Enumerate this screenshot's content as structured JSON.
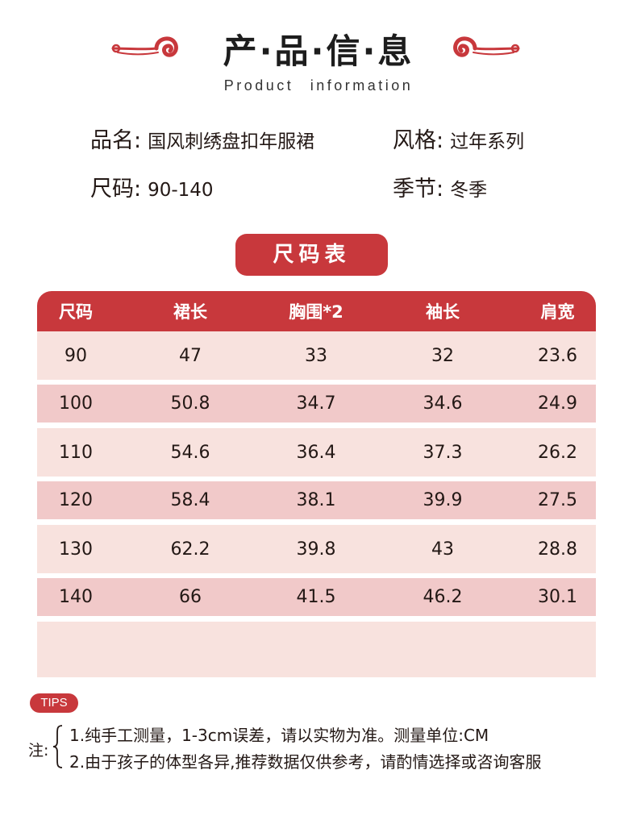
{
  "header": {
    "title": "产·品·信·息",
    "subtitle": "Product information"
  },
  "info": {
    "name_label": "品名:",
    "name_value": "国风刺绣盘扣年服裙",
    "style_label": "风格:",
    "style_value": "过年系列",
    "size_label": "尺码:",
    "size_value": "90-140",
    "season_label": "季节:",
    "season_value": "冬季"
  },
  "size_table": {
    "title": "尺码表",
    "headers": [
      "尺码",
      "裙长",
      "胸围*2",
      "袖长",
      "肩宽"
    ],
    "rows": [
      [
        "90",
        "47",
        "33",
        "32",
        "23.6"
      ],
      [
        "100",
        "50.8",
        "34.7",
        "34.6",
        "24.9"
      ],
      [
        "110",
        "54.6",
        "36.4",
        "37.3",
        "26.2"
      ],
      [
        "120",
        "58.4",
        "38.1",
        "39.9",
        "27.5"
      ],
      [
        "130",
        "62.2",
        "39.8",
        "43",
        "28.8"
      ],
      [
        "140",
        "66",
        "41.5",
        "46.2",
        "30.1"
      ]
    ]
  },
  "tips": {
    "badge": "TIPS",
    "note_label": "注:",
    "line1": "1.纯手工测量，1-3cm误差，请以实物为准。测量单位:CM",
    "line2": "2.由于孩子的体型各异,推荐数据仅供参考，请酌情选择或咨询客服"
  },
  "colors": {
    "accent": "#c8383c",
    "row_light": "#f8e2de",
    "row_dark": "#f1c9c9"
  }
}
